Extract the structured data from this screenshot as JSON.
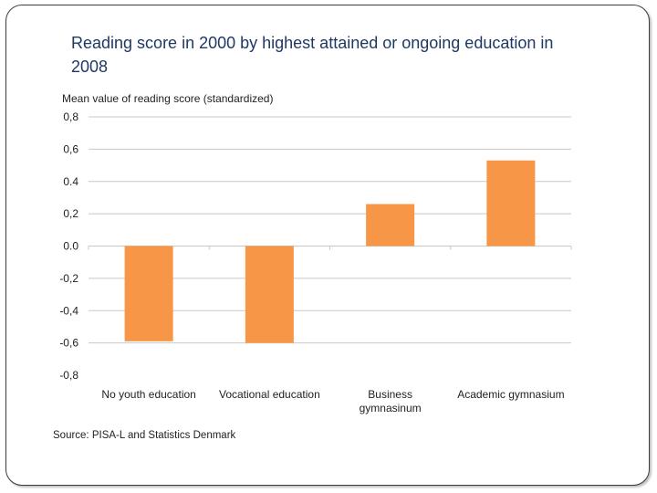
{
  "slide": {
    "title": "Reading score in 2000 by highest attained or ongoing education in 2008"
  },
  "chart_data": {
    "type": "bar",
    "title": "Reading score in 2000 by highest attained or ongoing education in 2008",
    "ylabel": "Mean value of reading score (standardized)",
    "xlabel": "",
    "categories": [
      [
        "No youth education"
      ],
      [
        "Vocational education"
      ],
      [
        "Business",
        "gymnasinum"
      ],
      [
        "Academic gymnasium"
      ]
    ],
    "values": [
      -0.59,
      -0.6,
      0.26,
      0.53
    ],
    "ylim": [
      -0.8,
      0.8
    ],
    "yticks": [
      0.8,
      0.6,
      0.4,
      0.2,
      0.0,
      -0.2,
      -0.4,
      -0.6,
      -0.8
    ],
    "ytick_labels": [
      "0,8",
      "0,6",
      "0.4",
      "0,2",
      "0.0",
      "-0,2",
      "-0,4",
      "-0,6",
      "-0,8"
    ],
    "bar_color": "#f79646",
    "grid": true,
    "source": "Source: PISA-L and Statistics Denmark"
  }
}
